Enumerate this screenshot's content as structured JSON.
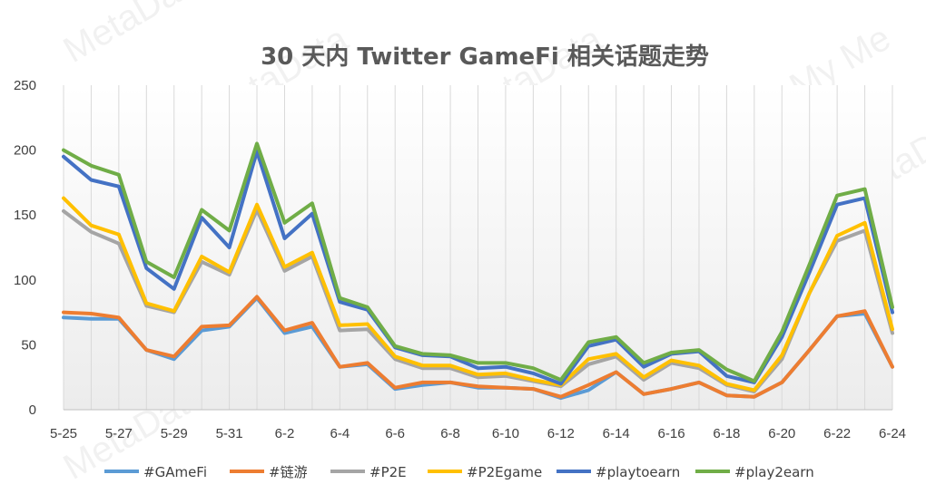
{
  "chart_data": {
    "type": "line",
    "title": "30 天内 Twitter GameFi 相关话题走势",
    "xlabel": "",
    "ylabel": "",
    "ylim": [
      0,
      250
    ],
    "yticks": [
      "0",
      "50",
      "100",
      "150",
      "200",
      "250"
    ],
    "x": [
      "5-25",
      "5-26",
      "5-27",
      "5-28",
      "5-29",
      "5-30",
      "5-31",
      "6-1",
      "6-2",
      "6-3",
      "6-4",
      "6-5",
      "6-6",
      "6-7",
      "6-8",
      "6-9",
      "6-10",
      "6-11",
      "6-12",
      "6-13",
      "6-14",
      "6-15",
      "6-16",
      "6-17",
      "6-18",
      "6-19",
      "6-20",
      "6-21",
      "6-22",
      "6-23",
      "6-24"
    ],
    "xtick_labels": [
      "5-25",
      "",
      "5-27",
      "",
      "5-29",
      "",
      "5-31",
      "",
      "6-2",
      "",
      "6-4",
      "",
      "6-6",
      "",
      "6-8",
      "",
      "6-10",
      "",
      "6-12",
      "",
      "6-14",
      "",
      "6-16",
      "",
      "6-18",
      "",
      "6-20",
      "",
      "6-22",
      "",
      "6-24"
    ],
    "grid": "vertical",
    "legend_position": "bottom",
    "series": [
      {
        "name": "#GAmeFi",
        "color": "#5B9BD5",
        "values": [
          71,
          70,
          70,
          46,
          39,
          61,
          64,
          86,
          59,
          64,
          33,
          35,
          16,
          19,
          21,
          17,
          17,
          16,
          9,
          15,
          29,
          12,
          16,
          21,
          11,
          10,
          21,
          46,
          72,
          74,
          33
        ]
      },
      {
        "name": "#链游",
        "color": "#ED7D31",
        "values": [
          75,
          74,
          71,
          46,
          41,
          64,
          65,
          87,
          61,
          67,
          33,
          36,
          17,
          21,
          21,
          18,
          17,
          16,
          10,
          19,
          29,
          12,
          16,
          21,
          11,
          10,
          21,
          46,
          72,
          76,
          33
        ]
      },
      {
        "name": "#P2E",
        "color": "#A5A5A5",
        "values": [
          153,
          137,
          128,
          80,
          75,
          114,
          104,
          154,
          107,
          118,
          61,
          62,
          39,
          32,
          32,
          25,
          26,
          22,
          18,
          35,
          41,
          23,
          36,
          32,
          19,
          14,
          39,
          90,
          130,
          138,
          59
        ]
      },
      {
        "name": "#P2Egame",
        "color": "#FFC000",
        "values": [
          163,
          142,
          135,
          82,
          76,
          118,
          106,
          158,
          110,
          121,
          65,
          66,
          41,
          34,
          34,
          27,
          28,
          23,
          19,
          39,
          43,
          25,
          38,
          34,
          20,
          15,
          42,
          90,
          134,
          144,
          62
        ]
      },
      {
        "name": "#playtoearn",
        "color": "#4472C4",
        "values": [
          195,
          177,
          172,
          109,
          93,
          148,
          125,
          199,
          132,
          151,
          83,
          77,
          48,
          42,
          41,
          32,
          33,
          28,
          20,
          49,
          54,
          33,
          43,
          45,
          26,
          21,
          56,
          106,
          158,
          163,
          75
        ]
      },
      {
        "name": "#play2earn",
        "color": "#70AD47",
        "values": [
          200,
          188,
          181,
          114,
          102,
          154,
          138,
          205,
          144,
          159,
          86,
          79,
          49,
          43,
          42,
          36,
          36,
          32,
          23,
          52,
          56,
          36,
          44,
          46,
          31,
          22,
          60,
          112,
          165,
          170,
          79
        ]
      }
    ]
  }
}
